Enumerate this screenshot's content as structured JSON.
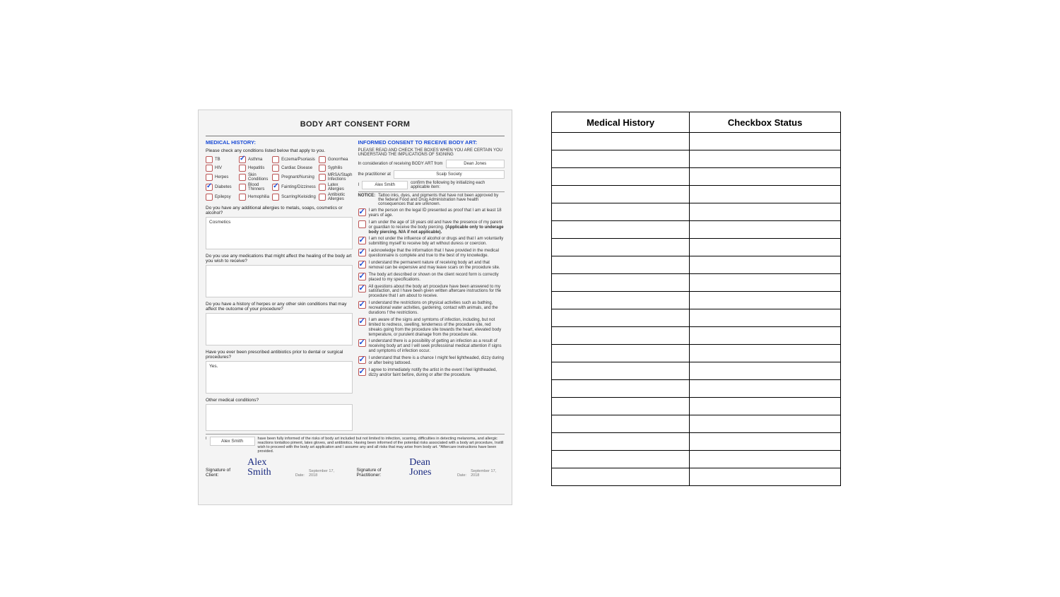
{
  "form": {
    "title": "BODY ART CONSENT FORM",
    "left": {
      "heading": "MEDICAL HISTORY:",
      "instruction": "Please check any conditions listed below that apply to you.",
      "conditions": [
        {
          "label": "TB",
          "checked": false
        },
        {
          "label": "Asthma",
          "checked": true
        },
        {
          "label": "Eczema/Psoriasis",
          "checked": false
        },
        {
          "label": "Gonorrhea",
          "checked": false
        },
        {
          "label": "HIV",
          "checked": false
        },
        {
          "label": "Hepatitis",
          "checked": false
        },
        {
          "label": "Cardiac Disease",
          "checked": false
        },
        {
          "label": "Syphilis",
          "checked": false
        },
        {
          "label": "Herpes",
          "checked": false
        },
        {
          "label": "Skin Conditions",
          "checked": false
        },
        {
          "label": "Pregnant/Nursing",
          "checked": false
        },
        {
          "label": "MRSA/Staph Infections",
          "checked": false
        },
        {
          "label": "Diabetes",
          "checked": true
        },
        {
          "label": "Blood Thinners",
          "checked": false
        },
        {
          "label": "Fainting/Dizziness",
          "checked": true
        },
        {
          "label": "Latex Allergies",
          "checked": false
        },
        {
          "label": "Epilepsy",
          "checked": false
        },
        {
          "label": "Hemophilia",
          "checked": false
        },
        {
          "label": "Scarring/Keloiding",
          "checked": false
        },
        {
          "label": "Antibiotic Allergies",
          "checked": false
        }
      ],
      "q1": {
        "label": "Do you have any additional allergies to metals, soaps, cosmetics or alcohol?",
        "answer": "Cosmetics"
      },
      "q2": {
        "label": "Do you use any medications that might affect the healing of the body art you wish to receive?",
        "answer": ""
      },
      "q3": {
        "label": "Do you have a history of herpes or any other skin conditions that may affect the outcome of your procedure?",
        "answer": ""
      },
      "q4": {
        "label": "Have you ever been prescribed antibiotics prior to dental or surgical procedures?",
        "answer": "Yes."
      },
      "q5": {
        "label": "Other medical conditions?",
        "answer": ""
      }
    },
    "right": {
      "heading": "INFORMED CONSENT TO RECEIVE BODY ART:",
      "intro": "PLEASE READ AND CHECK THE BOXES WHEN YOU ARE CERTAIN YOU UNDERSTAND THE IMPLICATIONS OF SIGNING",
      "row_from_label": "In consideration of receiving BODY ART from",
      "row_from_value": "Dean Jones",
      "row_at_label": "the practitioner at",
      "row_at_value": "Scalp Society",
      "row_confirm_label": "I",
      "row_confirm_name": "Alex Smith",
      "row_confirm_tail": "confirm the following by initializing each applicable item:",
      "notice_label": "NOTICE:",
      "notice_text": "Tattoo inks, dyes, and pigments that have not been approved by the federal Food and Drug Administration have health consequences that are unknown.",
      "items": [
        {
          "checked": true,
          "text": "I am the person on the legal ID presented as proof that I am at least 18 years of age."
        },
        {
          "checked": false,
          "text": "I am under the age of 18 years old and have the presence of my parent or guardian to receive the body piercing. (Applicable only to underage body piercing. N/A if not applicable).",
          "boldTail": true
        },
        {
          "checked": true,
          "text": "I am not under the influence of alcohol or drugs and that I am voluntarily submitting myself to receive bdy art without duress or coercion."
        },
        {
          "checked": true,
          "text": "I acknowledge that the information that I have provided in the medical questionnaire is complete and true to the best of my knowledge."
        },
        {
          "checked": true,
          "text": "I understand the permanent nature of receiving body art and that removal can be expensive and may leave scars on the procedure site."
        },
        {
          "checked": true,
          "text": "The body art described or shown on the client record form is correctly placed to my specifications."
        },
        {
          "checked": true,
          "text": "All questions about the body art procedure have been answered to my satisfaction, and I have been given written aftercare instructions for the procedure that I am about to receive."
        },
        {
          "checked": true,
          "text": "I understand the restrictions on physical activities such as bathing, recreational water activities, gardening, contact with animals, and the durations f the restrictions."
        },
        {
          "checked": true,
          "text": "I am aware of the signs and symtoms of infection, including, but not limited to redness, swelling, tenderness of the procedure site, red streaks going from the procedure site towards the heart, elevated body temperature, or purulent drainage from the procedure site."
        },
        {
          "checked": true,
          "text": "I understand there is a possibility of getting an infection as a result of receiving body art and I will seek professional medical attention if signs and symptoms of infection occur."
        },
        {
          "checked": true,
          "text": "I understand that there is a chance I might feel lightheaded, dizzy during or after being tattooed."
        },
        {
          "checked": true,
          "text": "I agree to immediately notify the artist in the event I feel lightheaded, dizzy and/or faint before, during or after the procedure."
        }
      ]
    },
    "declaration": {
      "name": "Alex Smith",
      "text": "have been fully informed of the risks of body art included but not limited to infection, scarring, difficulties in detecting melanoma, and allergic reactions tontattoo piment, latex gloves, and antibiotics. Having been informed of the potential risks associated with a body art procedure, Instill wish to proceed with the body art application and I assume any and all risks that may arise from body art. *Aftercare instructions have been provided."
    },
    "signatures": {
      "client_label": "Signature of Client:",
      "client_sig": "Alex Smith",
      "client_date_label": "Date:",
      "client_date": "September 17, 2018",
      "pract_label": "Signature of Practitioner:",
      "pract_sig": "Dean Jones",
      "pract_date_label": "Date:",
      "pract_date": "September 17, 2018"
    }
  },
  "table": {
    "header1": "Medical History",
    "header2": "Checkbox Status",
    "rows": 20
  },
  "style": {
    "accent": "#1a4bd6",
    "checkbox_border": "#b55"
  }
}
